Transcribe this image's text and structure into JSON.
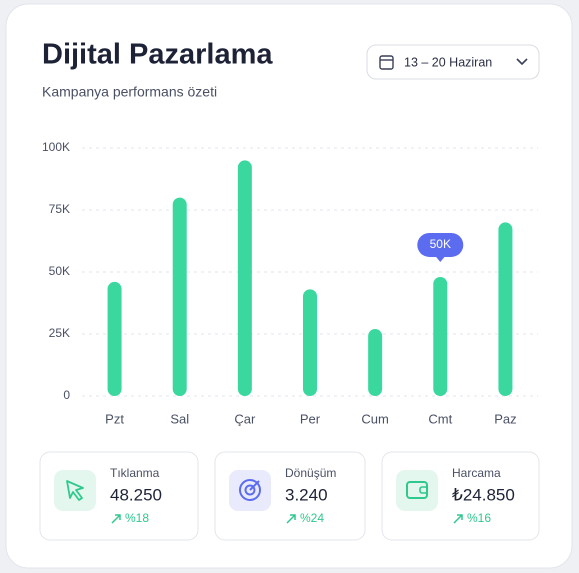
{
  "header": {
    "title": "Dijital Pazarlama",
    "subtitle": "Kampanya performans özeti",
    "date_range": "13 – 20 Haziran"
  },
  "chart_data": {
    "type": "bar",
    "categories": [
      "Pzt",
      "Sal",
      "Çar",
      "Per",
      "Cum",
      "Cmt",
      "Paz"
    ],
    "values": [
      46000,
      80000,
      95000,
      43000,
      27000,
      48000,
      70000
    ],
    "color": "#3ad89f",
    "ylim": [
      0,
      100000
    ],
    "yticks": [
      0,
      {
        "value": 25000,
        "label": "25K"
      },
      {
        "value": 50000,
        "label": "50K"
      },
      {
        "value": 75000,
        "label": "75K"
      },
      {
        "value": 100000,
        "label": "100K"
      }
    ],
    "grid": true,
    "annotation": "50K"
  },
  "stats": [
    {
      "label": "Tıklanma",
      "value": "48.250",
      "change": "%18"
    },
    {
      "label": "Dönüşüm",
      "value": "3.240",
      "change": "%24"
    },
    {
      "label": "Harcama",
      "value": "₺24.850",
      "change": "%16"
    }
  ]
}
